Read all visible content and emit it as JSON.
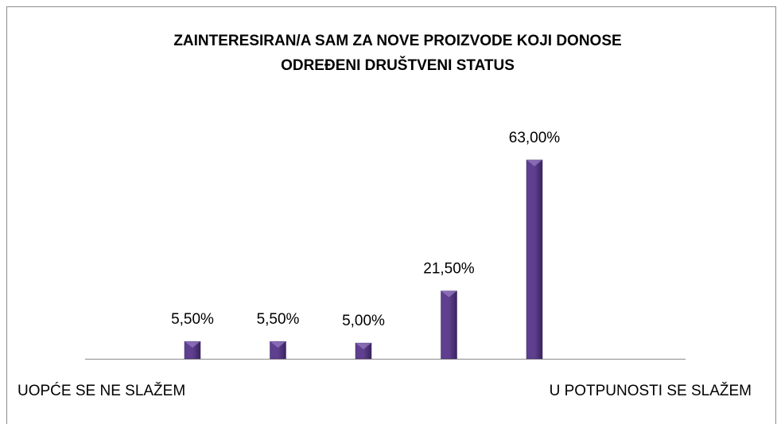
{
  "chart_data": {
    "type": "bar",
    "title": [
      "ZAINTERESIRAN/A SAM ZA NOVE PROIZVODE KOJI DONOSE",
      "ODREĐENI DRUŠTVENI STATUS"
    ],
    "categories": [
      "UOPĆE SE NE SLAŽEM",
      null,
      null,
      null,
      "U POTPUNOSTI SE SLAŽEM"
    ],
    "values": [
      5.5,
      5.5,
      5,
      21.5,
      63
    ],
    "value_labels": [
      "5,50%",
      "5,50%",
      "5,00%",
      "21,50%",
      "63,00%"
    ],
    "color": "#5f3f8f"
  }
}
